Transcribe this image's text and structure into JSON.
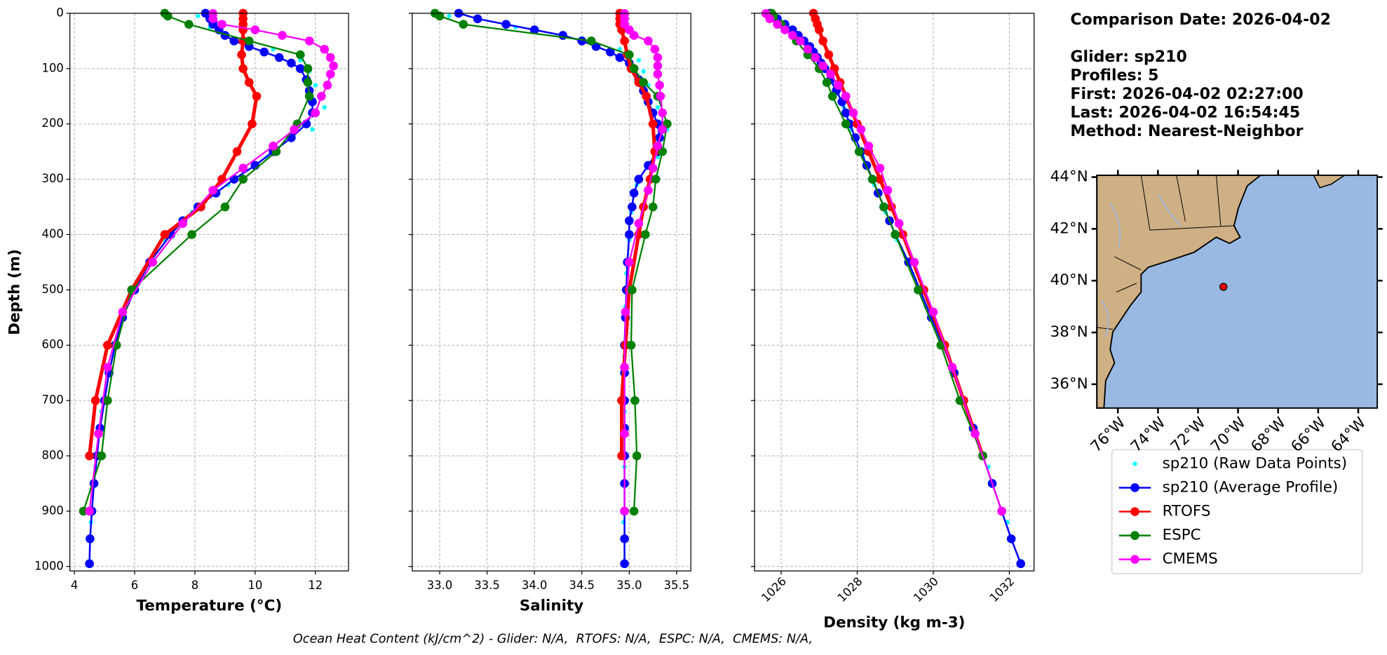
{
  "chart_data": [
    {
      "type": "line",
      "xlabel": "Temperature (°C)",
      "ylabel": "Depth (m)",
      "show_ytick_labels": true,
      "grid": true,
      "xlim": [
        3.85,
        13.1
      ],
      "xticks": [
        4,
        6,
        8,
        10,
        12
      ],
      "ylim": [
        1008,
        0
      ],
      "yticks": [
        0,
        100,
        200,
        300,
        400,
        500,
        600,
        700,
        800,
        900,
        1000
      ],
      "series": [
        {
          "name": "sp210 (Raw Data Points)",
          "color": "#00ffff",
          "style": "markers",
          "marker_size": 2.5,
          "depth": [
            5,
            25,
            45,
            65,
            85,
            105,
            130,
            170,
            210,
            260,
            310,
            360,
            410,
            470,
            530,
            620,
            720,
            820,
            920,
            990
          ],
          "values": [
            8.1,
            8.5,
            9.3,
            10.6,
            11.5,
            11.8,
            12.0,
            12.3,
            11.9,
            10.4,
            9.1,
            7.9,
            7.0,
            6.3,
            5.7,
            5.3,
            4.9,
            4.7,
            4.55,
            4.5
          ]
        },
        {
          "name": "sp210 (Average Profile)",
          "color": "#0000ff",
          "style": "line+markers",
          "marker_size": 5,
          "line_width": 2,
          "depth": [
            0,
            10,
            20,
            30,
            40,
            50,
            60,
            70,
            80,
            90,
            100,
            120,
            140,
            160,
            180,
            200,
            225,
            250,
            275,
            300,
            325,
            350,
            375,
            400,
            450,
            500,
            550,
            600,
            650,
            700,
            750,
            800,
            850,
            900,
            950,
            995
          ],
          "values": [
            8.35,
            8.5,
            8.6,
            8.8,
            9.0,
            9.3,
            9.8,
            10.3,
            10.8,
            11.2,
            11.5,
            11.7,
            11.8,
            11.9,
            11.9,
            11.7,
            11.2,
            10.6,
            10.0,
            9.3,
            8.7,
            8.1,
            7.6,
            7.2,
            6.5,
            6.0,
            5.6,
            5.35,
            5.15,
            5.0,
            4.85,
            4.75,
            4.65,
            4.58,
            4.52,
            4.5
          ]
        },
        {
          "name": "RTOFS",
          "color": "#ff0000",
          "style": "line+markers",
          "marker_size": 5,
          "line_width": 4,
          "depth": [
            0,
            10,
            20,
            30,
            50,
            75,
            100,
            125,
            150,
            200,
            250,
            300,
            350,
            400,
            500,
            600,
            700,
            800
          ],
          "values": [
            9.6,
            9.6,
            9.6,
            9.6,
            9.6,
            9.55,
            9.6,
            9.8,
            10.05,
            9.9,
            9.4,
            8.9,
            8.2,
            7.0,
            5.9,
            5.1,
            4.7,
            4.5
          ]
        },
        {
          "name": "ESPC",
          "color": "#008000",
          "style": "line+markers",
          "marker_size": 5,
          "line_width": 1.8,
          "depth": [
            0,
            5,
            20,
            50,
            75,
            100,
            125,
            150,
            200,
            250,
            300,
            350,
            400,
            500,
            600,
            700,
            800,
            900
          ],
          "values": [
            7.0,
            7.1,
            7.8,
            9.8,
            11.5,
            11.75,
            11.75,
            11.8,
            11.4,
            10.7,
            9.6,
            9.0,
            7.9,
            5.9,
            5.4,
            5.1,
            4.9,
            4.3
          ]
        },
        {
          "name": "CMEMS",
          "color": "#ff00ff",
          "style": "line+markers",
          "marker_size": 5,
          "line_width": 1.8,
          "depth": [
            0.5,
            10,
            20,
            30,
            40,
            50,
            65,
            80,
            95,
            110,
            130,
            150,
            180,
            210,
            240,
            280,
            320,
            380,
            450,
            540,
            640,
            760,
            900
          ],
          "values": [
            8.6,
            8.6,
            8.9,
            10.0,
            10.9,
            11.8,
            12.3,
            12.5,
            12.6,
            12.5,
            12.4,
            12.2,
            12.0,
            11.3,
            10.6,
            9.6,
            8.6,
            7.6,
            6.6,
            5.6,
            5.1,
            4.8,
            4.5
          ]
        }
      ]
    },
    {
      "type": "line",
      "xlabel": "Salinity",
      "show_ytick_labels": false,
      "grid": true,
      "xlim": [
        32.71,
        35.65
      ],
      "xticks": [
        {
          "value": 33,
          "label": "33.0"
        },
        33.5,
        {
          "value": 34,
          "label": "34.0"
        },
        34.5,
        {
          "value": 35,
          "label": "35.0"
        },
        35.5
      ],
      "ylim": [
        1008,
        0
      ],
      "yticks": [
        0,
        100,
        200,
        300,
        400,
        500,
        600,
        700,
        800,
        900,
        1000
      ],
      "series": [
        {
          "color": "#00ffff",
          "style": "markers",
          "marker_size": 2.5,
          "depth": [
            5,
            25,
            45,
            65,
            85,
            105,
            130,
            170,
            210,
            260,
            310,
            360,
            410,
            470,
            530,
            620,
            720,
            820,
            920,
            990
          ],
          "values": [
            33.1,
            33.8,
            34.5,
            34.9,
            35.1,
            35.15,
            35.2,
            35.3,
            35.4,
            35.3,
            35.08,
            35.02,
            35.0,
            34.97,
            34.96,
            34.95,
            34.95,
            34.95,
            34.94,
            34.95
          ]
        },
        {
          "color": "#0000ff",
          "style": "line+markers",
          "marker_size": 5,
          "line_width": 2,
          "depth": [
            0,
            10,
            20,
            30,
            40,
            50,
            60,
            70,
            80,
            90,
            100,
            120,
            140,
            160,
            180,
            200,
            225,
            250,
            275,
            300,
            325,
            350,
            375,
            400,
            450,
            500,
            550,
            600,
            650,
            700,
            750,
            800,
            850,
            900,
            950,
            995
          ],
          "values": [
            33.2,
            33.4,
            33.7,
            34.0,
            34.3,
            34.5,
            34.65,
            34.8,
            34.9,
            35.0,
            35.05,
            35.1,
            35.15,
            35.2,
            35.25,
            35.3,
            35.32,
            35.3,
            35.2,
            35.1,
            35.05,
            35.03,
            35.0,
            35.0,
            34.98,
            34.97,
            34.96,
            34.95,
            34.95,
            34.95,
            34.95,
            34.95,
            34.95,
            34.95,
            34.95,
            34.95
          ]
        },
        {
          "color": "#ff0000",
          "style": "line+markers",
          "marker_size": 5,
          "line_width": 4,
          "depth": [
            0,
            10,
            20,
            30,
            50,
            75,
            100,
            125,
            150,
            200,
            250,
            300,
            350,
            400,
            500,
            600,
            700,
            800
          ],
          "values": [
            34.9,
            34.9,
            34.9,
            34.92,
            34.95,
            34.98,
            35.02,
            35.1,
            35.18,
            35.25,
            35.27,
            35.22,
            35.15,
            35.1,
            35.0,
            34.96,
            34.92,
            34.92
          ]
        },
        {
          "color": "#008000",
          "style": "line+markers",
          "marker_size": 5,
          "line_width": 1.8,
          "depth": [
            0,
            5,
            20,
            50,
            75,
            100,
            125,
            150,
            200,
            250,
            300,
            350,
            400,
            500,
            600,
            700,
            800,
            900
          ],
          "values": [
            32.95,
            33.0,
            33.25,
            34.6,
            35.0,
            35.05,
            35.15,
            35.3,
            35.4,
            35.35,
            35.28,
            35.25,
            35.17,
            35.03,
            35.02,
            35.06,
            35.08,
            35.05
          ]
        },
        {
          "color": "#ff00ff",
          "style": "line+markers",
          "marker_size": 5,
          "line_width": 1.8,
          "depth": [
            0.5,
            10,
            20,
            30,
            40,
            50,
            65,
            80,
            95,
            110,
            130,
            150,
            180,
            210,
            240,
            280,
            320,
            380,
            450,
            540,
            640,
            760,
            900
          ],
          "values": [
            34.95,
            34.95,
            34.95,
            35.0,
            35.05,
            35.2,
            35.27,
            35.3,
            35.3,
            35.3,
            35.32,
            35.33,
            35.35,
            35.35,
            35.3,
            35.25,
            35.2,
            35.1,
            35.0,
            34.96,
            34.95,
            34.95,
            34.95
          ]
        }
      ]
    },
    {
      "type": "line",
      "xlabel": "Density (kg m-3)",
      "show_ytick_labels": false,
      "grid": true,
      "xtick_rotation": 45,
      "xlim": [
        1025.3,
        1032.65
      ],
      "xticks": [
        1026,
        1028,
        1030,
        1032
      ],
      "ylim": [
        1008,
        0
      ],
      "yticks": [
        0,
        100,
        200,
        300,
        400,
        500,
        600,
        700,
        800,
        900,
        1000
      ],
      "series": [
        {
          "color": "#00ffff",
          "style": "markers",
          "marker_size": 2.5,
          "depth": [
            5,
            25,
            45,
            65,
            85,
            105,
            130,
            170,
            210,
            260,
            310,
            360,
            410,
            470,
            530,
            620,
            720,
            820,
            920,
            990
          ],
          "values": [
            1025.8,
            1026.15,
            1026.5,
            1026.8,
            1027.0,
            1027.2,
            1027.4,
            1027.65,
            1027.85,
            1028.15,
            1028.45,
            1028.75,
            1029.05,
            1029.45,
            1029.8,
            1030.4,
            1030.9,
            1031.45,
            1031.95,
            1032.3
          ]
        },
        {
          "color": "#0000ff",
          "style": "line+markers",
          "marker_size": 5,
          "line_width": 2,
          "depth": [
            0,
            10,
            20,
            30,
            40,
            50,
            60,
            70,
            80,
            90,
            100,
            120,
            140,
            160,
            180,
            200,
            225,
            250,
            275,
            300,
            325,
            350,
            375,
            400,
            450,
            500,
            550,
            600,
            650,
            700,
            750,
            800,
            850,
            900,
            950,
            995
          ],
          "values": [
            1025.7,
            1025.9,
            1026.1,
            1026.3,
            1026.45,
            1026.6,
            1026.75,
            1026.85,
            1026.95,
            1027.05,
            1027.15,
            1027.3,
            1027.45,
            1027.6,
            1027.7,
            1027.8,
            1027.95,
            1028.1,
            1028.25,
            1028.4,
            1028.55,
            1028.7,
            1028.85,
            1029.0,
            1029.35,
            1029.65,
            1029.95,
            1030.25,
            1030.55,
            1030.8,
            1031.05,
            1031.3,
            1031.55,
            1031.8,
            1032.05,
            1032.3
          ]
        },
        {
          "color": "#ff0000",
          "style": "line+markers",
          "marker_size": 5,
          "line_width": 4,
          "depth": [
            0,
            10,
            20,
            30,
            50,
            75,
            100,
            125,
            150,
            200,
            250,
            300,
            350,
            400,
            500,
            600,
            700,
            800
          ],
          "values": [
            1026.85,
            1026.9,
            1026.95,
            1027.0,
            1027.1,
            1027.25,
            1027.4,
            1027.55,
            1027.7,
            1028.0,
            1028.3,
            1028.6,
            1028.9,
            1029.2,
            1029.75,
            1030.3,
            1030.8,
            1031.3
          ]
        },
        {
          "color": "#008000",
          "style": "line+markers",
          "marker_size": 5,
          "line_width": 1.8,
          "depth": [
            0,
            5,
            20,
            50,
            75,
            100,
            125,
            150,
            200,
            250,
            300,
            350,
            400,
            500,
            600,
            700,
            800,
            900
          ],
          "values": [
            1025.75,
            1025.8,
            1026.0,
            1026.4,
            1026.7,
            1027.0,
            1027.2,
            1027.35,
            1027.7,
            1028.05,
            1028.4,
            1028.7,
            1029.0,
            1029.6,
            1030.2,
            1030.7,
            1031.3,
            1031.8
          ]
        },
        {
          "color": "#ff00ff",
          "style": "line+markers",
          "marker_size": 5,
          "line_width": 1.8,
          "depth": [
            0.5,
            10,
            20,
            30,
            40,
            50,
            65,
            80,
            95,
            110,
            130,
            150,
            180,
            210,
            240,
            280,
            320,
            380,
            450,
            540,
            640,
            760,
            900
          ],
          "values": [
            1025.6,
            1025.7,
            1025.9,
            1026.1,
            1026.3,
            1026.5,
            1026.7,
            1026.9,
            1027.1,
            1027.3,
            1027.5,
            1027.7,
            1027.9,
            1028.1,
            1028.3,
            1028.6,
            1028.8,
            1029.1,
            1029.5,
            1030.0,
            1030.5,
            1031.1,
            1031.8
          ]
        }
      ]
    },
    {
      "type": "map",
      "xlim": [
        -77.05,
        -63.05
      ],
      "ylim": [
        35.08,
        44.07
      ],
      "xticks": [
        {
          "value": -76,
          "label": "76°W"
        },
        {
          "value": -74,
          "label": "74°W"
        },
        {
          "value": -72,
          "label": "72°W"
        },
        {
          "value": -70,
          "label": "70°W"
        },
        {
          "value": -68,
          "label": "68°W"
        },
        {
          "value": -66,
          "label": "66°W"
        },
        {
          "value": -64,
          "label": "64°W"
        }
      ],
      "yticks": [
        {
          "value": 36,
          "label": "36°N"
        },
        {
          "value": 38,
          "label": "38°N"
        },
        {
          "value": 40,
          "label": "40°N"
        },
        {
          "value": 42,
          "label": "42°N"
        },
        {
          "value": 44,
          "label": "44°N"
        }
      ],
      "point": {
        "lon": -70.73,
        "lat": 39.76,
        "color": "#ff0000"
      }
    }
  ],
  "info": [
    "Comparison Date: 2026-04-02",
    "Glider: sp210",
    "Profiles: 5",
    "First: 2026-04-02 02:27:00",
    "Last: 2026-04-02 16:54:45",
    "Method: Nearest-Neighbor"
  ],
  "footnote": "Ocean Heat Content (kJ/cm^2) - Glider: N/A,  RTOFS: N/A,  ESPC: N/A,  CMEMS: N/A,"
}
